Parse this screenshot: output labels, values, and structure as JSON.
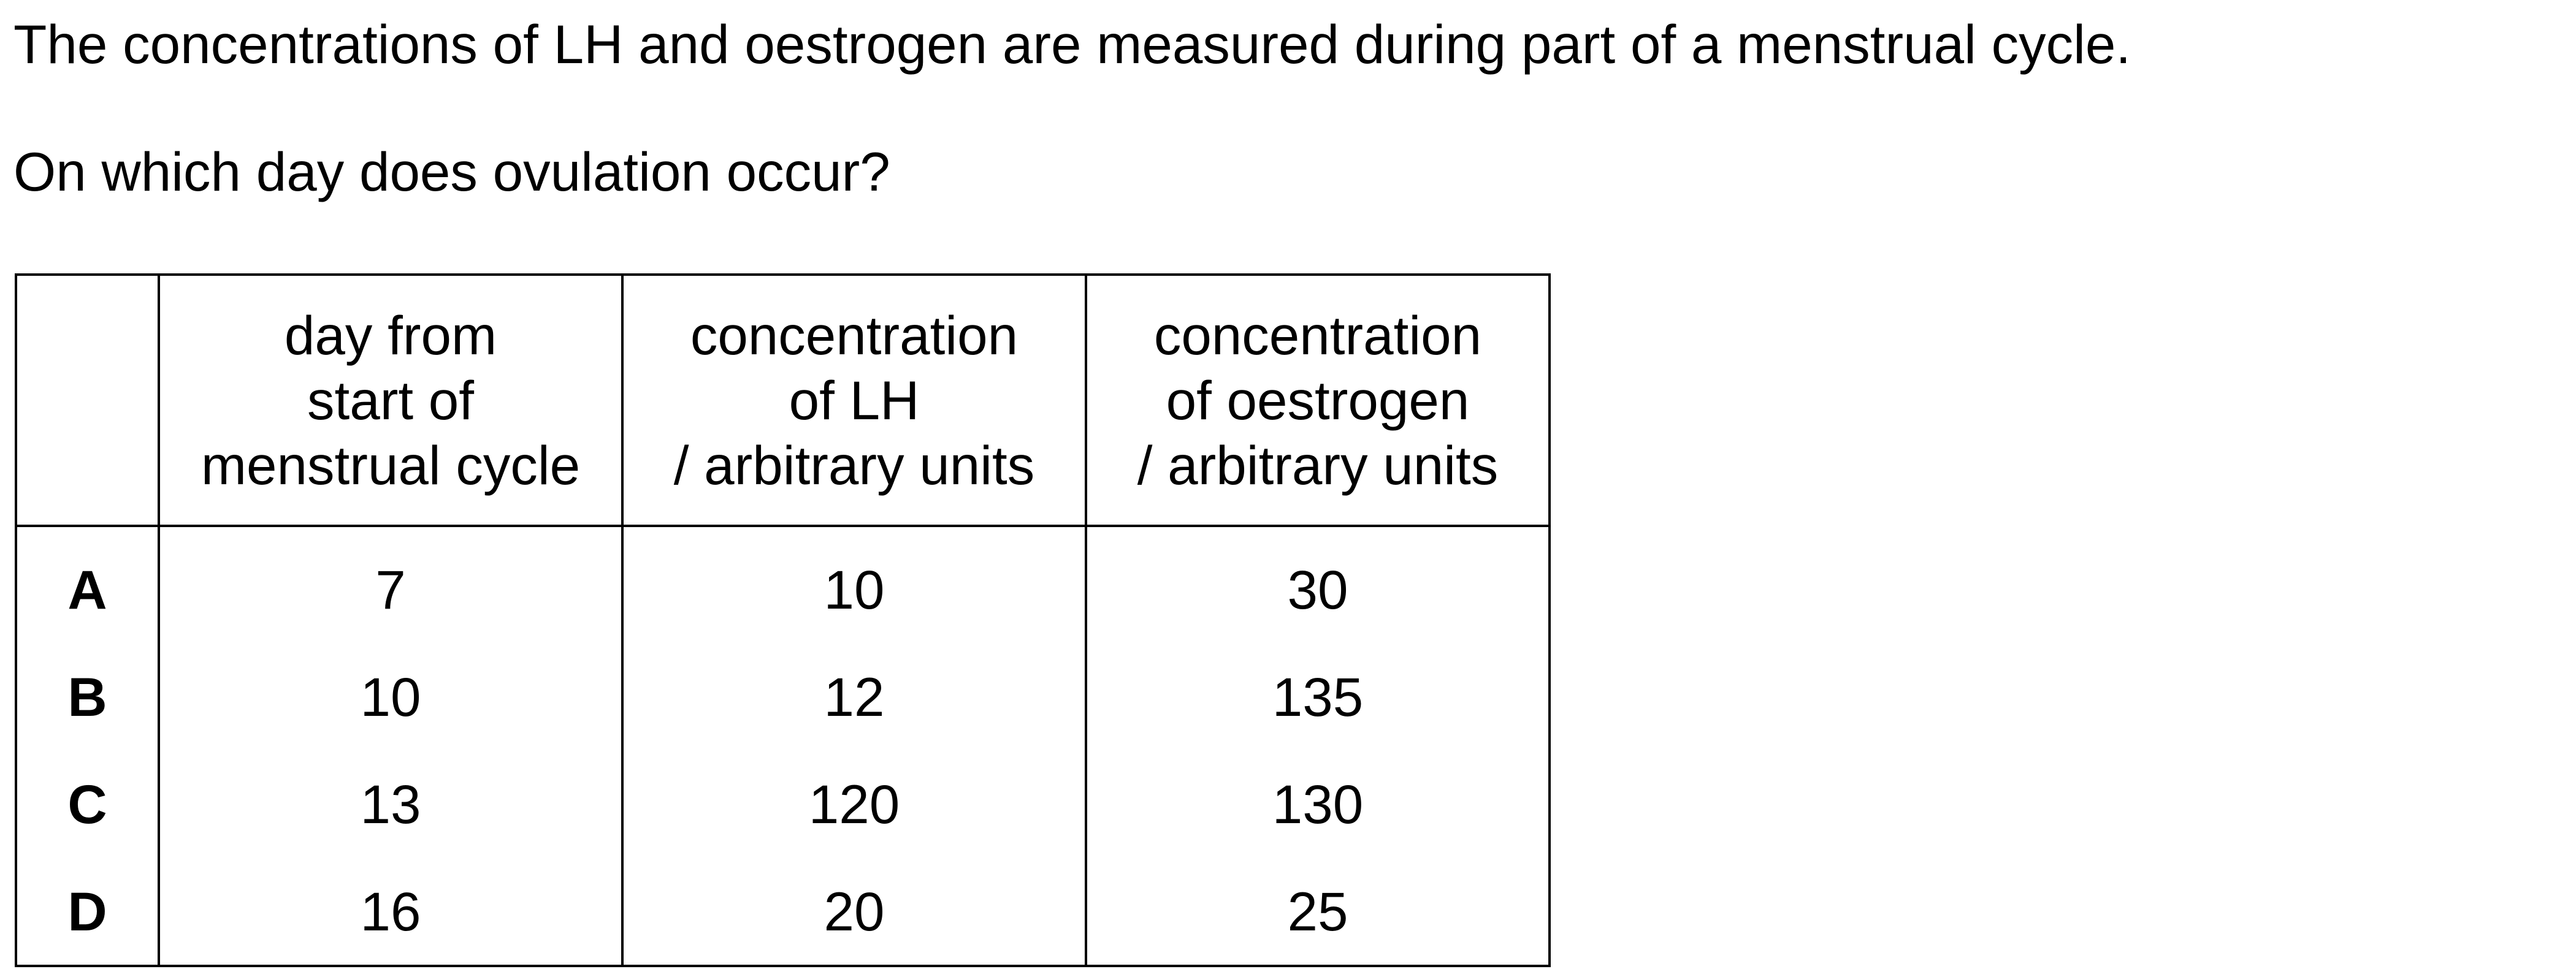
{
  "question": {
    "intro": "The concentrations of LH and oestrogen are measured during part of a menstrual cycle.",
    "prompt": "On which day does ovulation occur?"
  },
  "table": {
    "headers": [
      "",
      [
        "day from",
        "start of",
        "menstrual cycle"
      ],
      [
        "concentration",
        "of LH",
        "/ arbitrary units"
      ],
      [
        "concentration",
        "of oestrogen",
        "/ arbitrary units"
      ]
    ],
    "rows": [
      {
        "option": "A",
        "day": "7",
        "lh": "10",
        "oestrogen": "30"
      },
      {
        "option": "B",
        "day": "10",
        "lh": "12",
        "oestrogen": "135"
      },
      {
        "option": "C",
        "day": "13",
        "lh": "120",
        "oestrogen": "130"
      },
      {
        "option": "D",
        "day": "16",
        "lh": "20",
        "oestrogen": "25"
      }
    ]
  }
}
